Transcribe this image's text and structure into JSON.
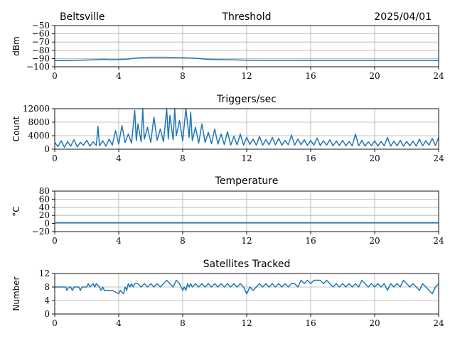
{
  "header": {
    "station": "Beltsville",
    "date": "2025/04/01"
  },
  "colors": {
    "series": "#1f77b4",
    "grid": "#b0b0b0"
  },
  "chart_data": [
    {
      "type": "line",
      "title": "Threshold",
      "ylabel": "dBm",
      "xlim": [
        0,
        24
      ],
      "ylim": [
        -100,
        -50
      ],
      "xticks": [
        "0",
        "4",
        "8",
        "12",
        "16",
        "20",
        "24"
      ],
      "yticks": [
        "−50",
        "−60",
        "−70",
        "−80",
        "−90",
        "−100"
      ],
      "ytick_values": [
        -50,
        -60,
        -70,
        -80,
        -90,
        -100
      ],
      "grid": true,
      "series": [
        {
          "x": [
            0,
            0.5,
            1,
            1.5,
            2,
            2.5,
            3,
            3.5,
            4,
            4.5,
            5,
            5.5,
            6,
            6.5,
            7,
            7.5,
            8,
            8.5,
            9,
            9.5,
            10,
            11,
            12,
            13,
            14,
            16,
            18,
            20,
            22,
            24
          ],
          "values": [
            -92.5,
            -92.5,
            -92.3,
            -92,
            -91.8,
            -91.5,
            -91,
            -91.5,
            -91.2,
            -90.8,
            -89.5,
            -89,
            -88.5,
            -88.5,
            -88.5,
            -88.8,
            -89,
            -89.3,
            -90,
            -90.8,
            -91.2,
            -91.5,
            -92,
            -92.2,
            -92.2,
            -92.3,
            -92.3,
            -92.3,
            -92.3,
            -92.3
          ]
        }
      ]
    },
    {
      "type": "line",
      "title": "Triggers/sec",
      "ylabel": "Count",
      "xlim": [
        0,
        24
      ],
      "ylim": [
        0,
        12000
      ],
      "xticks": [
        "0",
        "4",
        "8",
        "12",
        "16",
        "20",
        "24"
      ],
      "yticks": [
        "12000",
        "8000",
        "4000",
        "0"
      ],
      "ytick_values": [
        12000,
        8000,
        4000,
        0
      ],
      "grid": true,
      "series": [
        {
          "x": [
            0,
            0.2,
            0.4,
            0.6,
            0.8,
            1,
            1.2,
            1.4,
            1.6,
            1.8,
            2,
            2.2,
            2.4,
            2.6,
            2.7,
            2.8,
            3,
            3.2,
            3.4,
            3.6,
            3.8,
            4,
            4.2,
            4.4,
            4.6,
            4.8,
            5,
            5.1,
            5.2,
            5.4,
            5.5,
            5.6,
            5.8,
            6,
            6.2,
            6.4,
            6.6,
            6.8,
            7,
            7.1,
            7.2,
            7.4,
            7.5,
            7.6,
            7.8,
            8,
            8.2,
            8.4,
            8.5,
            8.6,
            8.8,
            9,
            9.2,
            9.4,
            9.6,
            9.8,
            10,
            10.2,
            10.4,
            10.6,
            10.8,
            11,
            11.2,
            11.4,
            11.6,
            11.8,
            12,
            12.2,
            12.4,
            12.6,
            12.8,
            13,
            13.2,
            13.4,
            13.6,
            13.8,
            14,
            14.2,
            14.4,
            14.6,
            14.8,
            15,
            15.2,
            15.4,
            15.6,
            15.8,
            16,
            16.2,
            16.4,
            16.6,
            16.8,
            17,
            17.2,
            17.4,
            17.6,
            17.8,
            18,
            18.2,
            18.4,
            18.6,
            18.8,
            19,
            19.2,
            19.4,
            19.6,
            19.8,
            20,
            20.2,
            20.4,
            20.6,
            20.8,
            21,
            21.2,
            21.4,
            21.6,
            21.8,
            22,
            22.2,
            22.4,
            22.6,
            22.8,
            23,
            23.2,
            23.4,
            23.6,
            23.8,
            24
          ],
          "values": [
            2000,
            800,
            2500,
            600,
            2200,
            900,
            2800,
            700,
            2000,
            1200,
            2600,
            900,
            2200,
            1100,
            6800,
            1000,
            2500,
            900,
            3000,
            1200,
            5500,
            1500,
            7000,
            2000,
            4500,
            1800,
            11500,
            2500,
            7500,
            2200,
            12000,
            3000,
            6500,
            2000,
            9500,
            2600,
            6000,
            2200,
            12000,
            3000,
            10000,
            2800,
            12000,
            4000,
            8500,
            2500,
            12000,
            3500,
            11000,
            2500,
            6500,
            1800,
            7500,
            2000,
            5000,
            1600,
            6000,
            1500,
            4500,
            1400,
            5200,
            1200,
            3800,
            1300,
            4500,
            1200,
            3500,
            1400,
            3000,
            1200,
            3800,
            1200,
            2800,
            1300,
            3500,
            1300,
            3200,
            1200,
            2600,
            1300,
            4200,
            1200,
            3000,
            1300,
            2800,
            1100,
            2600,
            1200,
            3300,
            1100,
            2500,
            1200,
            2800,
            1000,
            2400,
            1100,
            2600,
            1000,
            2300,
            1000,
            4500,
            1000,
            2600,
            900,
            2200,
            1000,
            2500,
            900,
            2300,
            1000,
            3500,
            900,
            2400,
            1000,
            2600,
            900,
            2300,
            1000,
            2400,
            900,
            3000,
            1000,
            2500,
            1200,
            3200,
            1100,
            3500
          ]
        }
      ]
    },
    {
      "type": "line",
      "title": "Temperature",
      "ylabel": "°C",
      "xlim": [
        0,
        24
      ],
      "ylim": [
        -20,
        80
      ],
      "xticks": [
        "0",
        "4",
        "8",
        "12",
        "16",
        "20",
        "24"
      ],
      "yticks": [
        "80",
        "60",
        "40",
        "20",
        "0",
        "−20"
      ],
      "ytick_values": [
        80,
        60,
        40,
        20,
        0,
        -20
      ],
      "grid": true,
      "series": [
        {
          "x": [
            0,
            24
          ],
          "values": [
            2,
            2
          ]
        }
      ]
    },
    {
      "type": "line",
      "title": "Satellites Tracked",
      "ylabel": "Number",
      "xlim": [
        0,
        24
      ],
      "ylim": [
        0,
        12
      ],
      "xticks": [
        "0",
        "4",
        "8",
        "12",
        "16",
        "20",
        "24"
      ],
      "yticks": [
        "12",
        "8",
        "4",
        "0"
      ],
      "ytick_values": [
        12,
        8,
        4,
        0
      ],
      "grid": true,
      "series": [
        {
          "x": [
            0,
            0.7,
            0.75,
            0.9,
            1.0,
            1.1,
            1.2,
            1.5,
            1.6,
            1.7,
            2.0,
            2.1,
            2.2,
            2.4,
            2.5,
            2.6,
            2.8,
            2.9,
            3.0,
            3.1,
            3.5,
            3.6,
            4.0,
            4.1,
            4.3,
            4.4,
            4.5,
            4.6,
            4.7,
            4.8,
            4.9,
            5.0,
            5.2,
            5.4,
            5.6,
            5.8,
            6.0,
            6.2,
            6.4,
            6.6,
            6.8,
            7.0,
            7.2,
            7.4,
            7.6,
            7.8,
            8.0,
            8.1,
            8.2,
            8.3,
            8.4,
            8.5,
            8.6,
            8.8,
            9.0,
            9.2,
            9.4,
            9.6,
            9.8,
            10.0,
            10.2,
            10.4,
            10.6,
            10.8,
            11.0,
            11.2,
            11.4,
            11.6,
            11.8,
            12.0,
            12.1,
            12.2,
            12.4,
            12.6,
            12.8,
            13.0,
            13.2,
            13.4,
            13.6,
            13.8,
            14.0,
            14.2,
            14.4,
            14.6,
            14.8,
            15.0,
            15.2,
            15.4,
            15.6,
            15.8,
            16.0,
            16.2,
            16.4,
            16.6,
            16.8,
            17.0,
            17.2,
            17.4,
            17.6,
            17.8,
            18.0,
            18.2,
            18.4,
            18.6,
            18.8,
            19.0,
            19.2,
            19.4,
            19.6,
            19.8,
            20.0,
            20.2,
            20.4,
            20.6,
            20.8,
            21.0,
            21.2,
            21.4,
            21.6,
            21.8,
            22.0,
            22.2,
            22.4,
            22.6,
            22.8,
            23.0,
            23.2,
            23.4,
            23.6,
            23.8,
            24.0
          ],
          "values": [
            8,
            8,
            7,
            8,
            8,
            7,
            8,
            8,
            7,
            8,
            8,
            9,
            8,
            9,
            8,
            9,
            8,
            7,
            8,
            7,
            7,
            7,
            6,
            7,
            6,
            8,
            7,
            9,
            8,
            9,
            8,
            9,
            9,
            8,
            9,
            8,
            9,
            8,
            9,
            8,
            9,
            10,
            9,
            8,
            10,
            9,
            7,
            8,
            7,
            9,
            8,
            9,
            8,
            9,
            8,
            9,
            8,
            9,
            8,
            9,
            8,
            9,
            8,
            9,
            8,
            9,
            8,
            9,
            8,
            6,
            7,
            8,
            7,
            8,
            9,
            8,
            9,
            8,
            9,
            8,
            9,
            8,
            9,
            8,
            9,
            9,
            8,
            10,
            9,
            10,
            9,
            10,
            10,
            10,
            9,
            10,
            9,
            8,
            9,
            8,
            9,
            8,
            9,
            8,
            9,
            8,
            10,
            9,
            8,
            9,
            8,
            9,
            8,
            9,
            7,
            9,
            8,
            9,
            8,
            10,
            9,
            8,
            9,
            8,
            7,
            9,
            8,
            7,
            6,
            8,
            9
          ]
        }
      ]
    }
  ]
}
